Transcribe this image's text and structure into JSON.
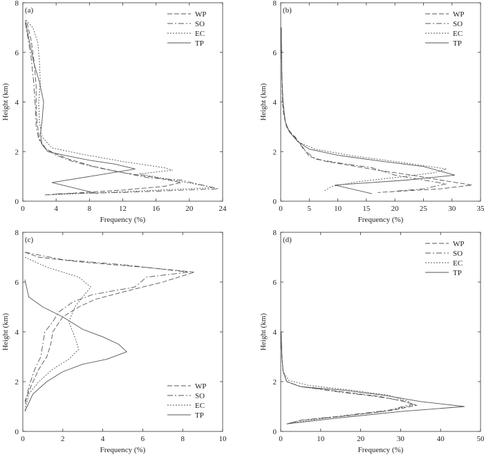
{
  "chart_data": [
    {
      "type": "line",
      "panel_label": "(a)",
      "xlabel": "Frequency (%)",
      "ylabel": "Height (km)",
      "xlim": [
        0,
        24
      ],
      "ylim": [
        0,
        8
      ],
      "xticks": [
        "0",
        "4",
        "8",
        "12",
        "16",
        "20",
        "24"
      ],
      "yticks": [
        "0",
        "2",
        "4",
        "6",
        "8"
      ],
      "legend_position": "top-right",
      "series": [
        {
          "name": "WP",
          "style": "dashed",
          "points": [
            [
              0.5,
              7.2
            ],
            [
              1.0,
              6.5
            ],
            [
              1.4,
              5.5
            ],
            [
              1.6,
              4.6
            ],
            [
              1.6,
              3.8
            ],
            [
              1.7,
              3.2
            ],
            [
              2.0,
              2.5
            ],
            [
              2.8,
              2.1
            ],
            [
              4.0,
              1.9
            ],
            [
              5.5,
              1.7
            ],
            [
              8.5,
              1.4
            ],
            [
              12,
              1.15
            ],
            [
              16,
              0.95
            ],
            [
              19,
              0.75
            ],
            [
              17,
              0.6
            ],
            [
              12,
              0.45
            ],
            [
              2.5,
              0.25
            ]
          ]
        },
        {
          "name": "SO",
          "style": "dashdot",
          "points": [
            [
              0.3,
              7.2
            ],
            [
              0.6,
              6.6
            ],
            [
              1.0,
              5.8
            ],
            [
              1.3,
              4.8
            ],
            [
              1.5,
              3.8
            ],
            [
              1.6,
              3.0
            ],
            [
              1.9,
              2.5
            ],
            [
              2.6,
              2.15
            ],
            [
              4.0,
              1.85
            ],
            [
              6.0,
              1.6
            ],
            [
              9,
              1.35
            ],
            [
              12,
              1.15
            ],
            [
              15,
              0.95
            ],
            [
              19,
              0.85
            ],
            [
              23.5,
              0.5
            ],
            [
              12,
              0.35
            ],
            [
              4,
              0.3
            ]
          ]
        },
        {
          "name": "EC",
          "style": "dotted",
          "points": [
            [
              0.4,
              7.3
            ],
            [
              1.2,
              7.0
            ],
            [
              1.8,
              6.4
            ],
            [
              2.0,
              5.6
            ],
            [
              2.1,
              4.8
            ],
            [
              1.9,
              4.0
            ],
            [
              2.0,
              3.2
            ],
            [
              2.3,
              2.6
            ],
            [
              3.5,
              2.15
            ],
            [
              7,
              1.9
            ],
            [
              12,
              1.6
            ],
            [
              17,
              1.35
            ],
            [
              18,
              1.25
            ],
            [
              14,
              1.1
            ],
            [
              18,
              0.85
            ],
            [
              23,
              0.55
            ],
            [
              10,
              0.35
            ],
            [
              3,
              0.25
            ]
          ]
        },
        {
          "name": "TP",
          "style": "solid",
          "points": [
            [
              0.3,
              7.3
            ],
            [
              0.7,
              6.6
            ],
            [
              1.3,
              5.6
            ],
            [
              2.0,
              4.8
            ],
            [
              2.5,
              4.0
            ],
            [
              2.3,
              3.2
            ],
            [
              2.1,
              2.7
            ],
            [
              2.3,
              2.3
            ],
            [
              3.0,
              2.0
            ],
            [
              5,
              1.85
            ],
            [
              8,
              1.65
            ],
            [
              11,
              1.5
            ],
            [
              13.5,
              1.3
            ],
            [
              9,
              1.05
            ],
            [
              3.5,
              0.75
            ],
            [
              9,
              0.3
            ]
          ]
        }
      ]
    },
    {
      "type": "line",
      "panel_label": "(b)",
      "xlabel": "Frequency (%)",
      "ylabel": "Height (km)",
      "xlim": [
        0,
        35
      ],
      "ylim": [
        0,
        8
      ],
      "xticks": [
        "0",
        "5",
        "10",
        "15",
        "20",
        "25",
        "30",
        "35"
      ],
      "yticks": [
        "0",
        "2",
        "4",
        "6",
        "8"
      ],
      "legend_position": "top-right",
      "series": [
        {
          "name": "WP",
          "style": "dashed",
          "points": [
            [
              0.1,
              7.0
            ],
            [
              0.2,
              5.0
            ],
            [
              0.3,
              4.0
            ],
            [
              0.5,
              3.5
            ],
            [
              1.0,
              3.0
            ],
            [
              2.0,
              2.7
            ],
            [
              3.5,
              2.3
            ],
            [
              5,
              1.8
            ],
            [
              8,
              1.6
            ],
            [
              12,
              1.45
            ],
            [
              17,
              1.25
            ],
            [
              23,
              1.05
            ],
            [
              28,
              0.85
            ],
            [
              33.5,
              0.65
            ],
            [
              28,
              0.5
            ],
            [
              17,
              0.35
            ]
          ]
        },
        {
          "name": "SO",
          "style": "dashdot",
          "points": [
            [
              0.1,
              7.0
            ],
            [
              0.2,
              5.0
            ],
            [
              0.4,
              4.0
            ],
            [
              0.8,
              3.2
            ],
            [
              1.5,
              2.8
            ],
            [
              2.5,
              2.6
            ],
            [
              4,
              2.1
            ],
            [
              6,
              1.7
            ],
            [
              10,
              1.55
            ],
            [
              16,
              1.35
            ],
            [
              20,
              1.05
            ],
            [
              25,
              0.85
            ],
            [
              29,
              0.7
            ],
            [
              25,
              0.5
            ],
            [
              20,
              0.4
            ]
          ]
        },
        {
          "name": "EC",
          "style": "dotted",
          "points": [
            [
              0.1,
              7.0
            ],
            [
              0.2,
              5.0
            ],
            [
              0.4,
              4.0
            ],
            [
              0.8,
              3.2
            ],
            [
              1.5,
              2.8
            ],
            [
              3,
              2.4
            ],
            [
              6,
              2.1
            ],
            [
              12,
              1.85
            ],
            [
              20,
              1.6
            ],
            [
              26,
              1.4
            ],
            [
              29,
              1.3
            ],
            [
              27,
              1.15
            ],
            [
              20,
              0.95
            ],
            [
              14,
              0.8
            ],
            [
              9,
              0.6
            ],
            [
              7.5,
              0.4
            ]
          ]
        },
        {
          "name": "TP",
          "style": "solid",
          "points": [
            [
              0.1,
              7.0
            ],
            [
              0.2,
              5.0
            ],
            [
              0.4,
              4.0
            ],
            [
              0.8,
              3.2
            ],
            [
              1.5,
              2.8
            ],
            [
              3,
              2.4
            ],
            [
              5,
              2.1
            ],
            [
              10,
              1.85
            ],
            [
              18,
              1.6
            ],
            [
              25,
              1.4
            ],
            [
              30.5,
              1.05
            ],
            [
              22,
              0.85
            ],
            [
              9.5,
              0.65
            ],
            [
              16,
              0.3
            ]
          ]
        }
      ]
    },
    {
      "type": "line",
      "panel_label": "(c)",
      "xlabel": "Frequency (%)",
      "ylabel": "Height (km)",
      "xlim": [
        0,
        10
      ],
      "ylim": [
        0,
        8
      ],
      "xticks": [
        "0",
        "2",
        "4",
        "6",
        "8",
        "10"
      ],
      "yticks": [
        "0",
        "2",
        "4",
        "6",
        "8"
      ],
      "legend_position": "bottom-right",
      "series": [
        {
          "name": "WP",
          "style": "dashed",
          "points": [
            [
              0.1,
              7.2
            ],
            [
              0.8,
              7.0
            ],
            [
              3,
              6.8
            ],
            [
              6,
              6.6
            ],
            [
              8.6,
              6.4
            ],
            [
              7,
              6.0
            ],
            [
              5,
              5.6
            ],
            [
              3.6,
              5.3
            ],
            [
              2.8,
              5.0
            ],
            [
              2.0,
              4.6
            ],
            [
              1.5,
              4.0
            ],
            [
              1.4,
              3.5
            ],
            [
              1.2,
              3.0
            ],
            [
              0.8,
              2.5
            ],
            [
              0.4,
              1.8
            ],
            [
              0.1,
              1.2
            ]
          ]
        },
        {
          "name": "SO",
          "style": "dashdot",
          "points": [
            [
              0.1,
              7.2
            ],
            [
              2,
              6.9
            ],
            [
              5,
              6.7
            ],
            [
              8.3,
              6.4
            ],
            [
              6.2,
              6.2
            ],
            [
              5.6,
              5.8
            ],
            [
              3.5,
              5.5
            ],
            [
              2.5,
              5.2
            ],
            [
              1.8,
              4.8
            ],
            [
              1.5,
              4.4
            ],
            [
              1.1,
              4.0
            ],
            [
              1.0,
              3.5
            ],
            [
              0.9,
              3.0
            ],
            [
              0.6,
              2.5
            ],
            [
              0.3,
              1.8
            ],
            [
              0.1,
              1.0
            ]
          ]
        },
        {
          "name": "EC",
          "style": "dotted",
          "points": [
            [
              0.1,
              7.0
            ],
            [
              1.2,
              6.6
            ],
            [
              2.8,
              6.2
            ],
            [
              3.4,
              5.8
            ],
            [
              3.0,
              5.4
            ],
            [
              2.6,
              5.0
            ],
            [
              2.3,
              4.4
            ],
            [
              2.6,
              3.8
            ],
            [
              2.8,
              3.3
            ],
            [
              2.3,
              2.9
            ],
            [
              1.5,
              2.5
            ],
            [
              0.8,
              2.0
            ],
            [
              0.3,
              1.5
            ],
            [
              0.1,
              0.8
            ]
          ]
        },
        {
          "name": "TP",
          "style": "solid",
          "points": [
            [
              0.1,
              6.1
            ],
            [
              0.3,
              5.4
            ],
            [
              1.0,
              5.0
            ],
            [
              2.0,
              4.6
            ],
            [
              3.0,
              4.1
            ],
            [
              4.0,
              3.8
            ],
            [
              4.8,
              3.5
            ],
            [
              5.2,
              3.2
            ],
            [
              4.2,
              2.9
            ],
            [
              3.0,
              2.7
            ],
            [
              2.0,
              2.4
            ],
            [
              1.2,
              2.0
            ],
            [
              0.5,
              1.5
            ],
            [
              0.1,
              0.8
            ]
          ]
        }
      ]
    },
    {
      "type": "line",
      "panel_label": "(d)",
      "xlabel": "Frequency (%)",
      "ylabel": "Height (km)",
      "xlim": [
        0,
        50
      ],
      "ylim": [
        0,
        8
      ],
      "xticks": [
        "0",
        "10",
        "20",
        "30",
        "40",
        "50"
      ],
      "yticks": [
        "0",
        "2",
        "4",
        "6",
        "8"
      ],
      "legend_position": "top-right",
      "series": [
        {
          "name": "WP",
          "style": "dashed",
          "points": [
            [
              0.1,
              4.0
            ],
            [
              0.3,
              3.0
            ],
            [
              0.6,
              2.4
            ],
            [
              1.5,
              2.0
            ],
            [
              5,
              1.8
            ],
            [
              15,
              1.6
            ],
            [
              25,
              1.4
            ],
            [
              31,
              1.2
            ],
            [
              34,
              1.05
            ],
            [
              28,
              0.85
            ],
            [
              15,
              0.6
            ],
            [
              5,
              0.45
            ],
            [
              1.5,
              0.3
            ]
          ]
        },
        {
          "name": "SO",
          "style": "dashdot",
          "points": [
            [
              0.1,
              4.0
            ],
            [
              0.3,
              3.0
            ],
            [
              0.6,
              2.4
            ],
            [
              1.5,
              2.0
            ],
            [
              5,
              1.8
            ],
            [
              14,
              1.6
            ],
            [
              24,
              1.4
            ],
            [
              30,
              1.25
            ],
            [
              33,
              1.1
            ],
            [
              27,
              0.85
            ],
            [
              14,
              0.6
            ],
            [
              5,
              0.45
            ],
            [
              1.5,
              0.3
            ]
          ]
        },
        {
          "name": "EC",
          "style": "dotted",
          "points": [
            [
              0.1,
              4.0
            ],
            [
              0.3,
              3.0
            ],
            [
              0.6,
              2.4
            ],
            [
              2,
              2.05
            ],
            [
              7,
              1.85
            ],
            [
              18,
              1.65
            ],
            [
              27,
              1.45
            ],
            [
              32,
              1.2
            ],
            [
              33,
              1.05
            ],
            [
              26,
              0.8
            ],
            [
              12,
              0.55
            ],
            [
              3,
              0.35
            ]
          ]
        },
        {
          "name": "TP",
          "style": "solid",
          "points": [
            [
              0.1,
              4.0
            ],
            [
              0.3,
              3.0
            ],
            [
              0.6,
              2.4
            ],
            [
              1.5,
              2.0
            ],
            [
              5,
              1.8
            ],
            [
              16,
              1.65
            ],
            [
              26,
              1.45
            ],
            [
              35,
              1.2
            ],
            [
              46,
              1.0
            ],
            [
              30,
              0.8
            ],
            [
              15,
              0.55
            ],
            [
              4,
              0.35
            ],
            [
              1.5,
              0.3
            ]
          ]
        }
      ]
    }
  ]
}
